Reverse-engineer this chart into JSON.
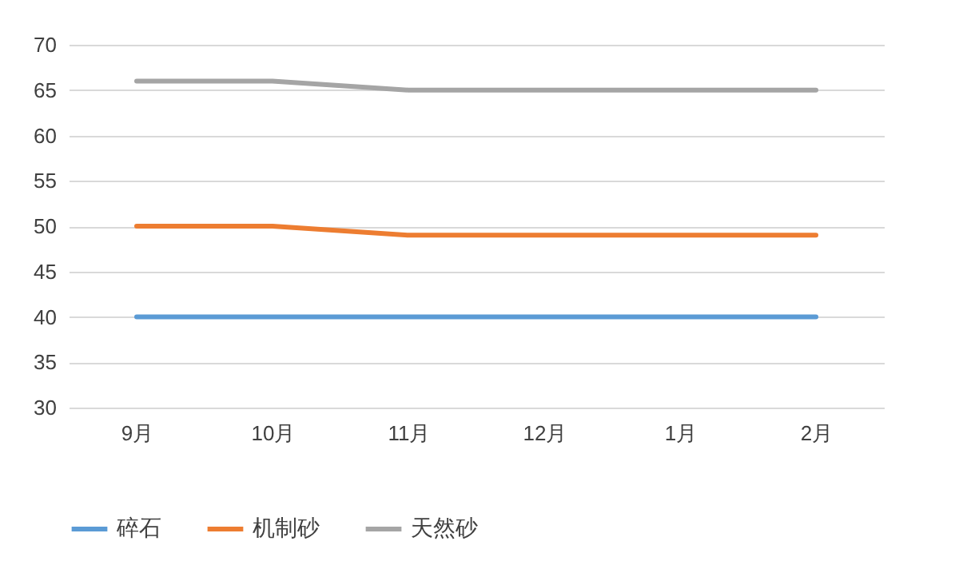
{
  "chart_data": {
    "type": "line",
    "categories": [
      "9月",
      "10月",
      "11月",
      "12月",
      "1月",
      "2月"
    ],
    "series": [
      {
        "name": "碎石",
        "color": "#5b9bd5",
        "values": [
          40,
          40,
          40,
          40,
          40,
          40
        ]
      },
      {
        "name": "机制砂",
        "color": "#ed7d31",
        "values": [
          50,
          50,
          49,
          49,
          49,
          49
        ]
      },
      {
        "name": "天然砂",
        "color": "#a5a5a5",
        "values": [
          66,
          66,
          65,
          65,
          65,
          65
        ]
      }
    ],
    "ylim": [
      30,
      70
    ],
    "yticks": [
      30,
      35,
      40,
      45,
      50,
      55,
      60,
      65,
      70
    ],
    "grid": "y",
    "legend": "bottom",
    "marker": "none",
    "line_style": "solid"
  }
}
